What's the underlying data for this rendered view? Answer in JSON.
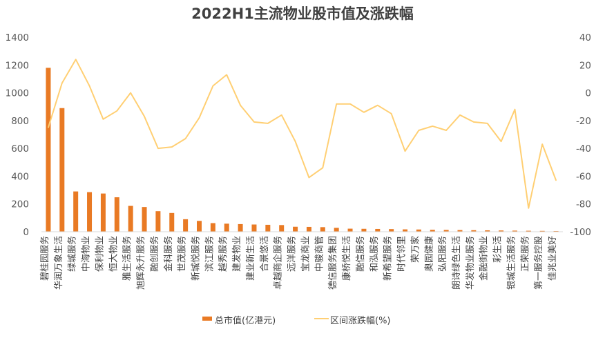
{
  "chart_data": {
    "type": "bar",
    "title": "2022H1主流物业股市值及涨跌幅",
    "categories": [
      "碧桂园服务",
      "华润万象生活",
      "绿城服务",
      "中海物业",
      "保利物业",
      "恒大物业",
      "雅生活服务",
      "旭辉永升服务",
      "融创服务",
      "金科服务",
      "世茂服务",
      "新城悦服务",
      "滨江服务",
      "越秀服务",
      "建发物业",
      "建业新生活",
      "合景悠活",
      "卓越商企服务",
      "远洋服务",
      "宝龙商业",
      "中骏商管",
      "德信服务集团",
      "康桥悦生活",
      "融信服务",
      "和泓服务",
      "新希望服务",
      "时代邻里",
      "荣万家",
      "奥园健康",
      "弘阳服务",
      "朗诗绿色生活",
      "华发物业服务",
      "金融街物业",
      "彩生活",
      "银城生活服务",
      "正荣服务",
      "第一服务控股",
      "佳兆业美好"
    ],
    "series": [
      {
        "name": "总市值(亿港元)",
        "type": "bar",
        "axis": "left",
        "color": "#E97A24",
        "values": [
          1180,
          890,
          290,
          285,
          275,
          248,
          186,
          178,
          148,
          135,
          90,
          78,
          62,
          58,
          55,
          52,
          50,
          48,
          36,
          35,
          33,
          28,
          22,
          21,
          20,
          19,
          17,
          16,
          14,
          13,
          12,
          11,
          10,
          9,
          8,
          7,
          6,
          5
        ]
      },
      {
        "name": "区间涨跌幅(%)",
        "type": "line",
        "axis": "right",
        "color": "#FFCF73",
        "values": [
          -25,
          7,
          24,
          5,
          -19,
          -13,
          0,
          -17,
          -40,
          -39,
          -33,
          -18,
          5,
          13,
          -9,
          -21,
          -22,
          -16,
          -35,
          -61,
          -54,
          -8,
          -8,
          -14,
          -9,
          -15,
          -42,
          -27,
          -24,
          -27,
          -16,
          -21,
          -22,
          -35,
          -12,
          -83,
          -37,
          -63
        ]
      }
    ],
    "left_axis": {
      "ylim": [
        0,
        1400
      ],
      "ticks": [
        "0",
        "200",
        "400",
        "600",
        "800",
        "1000",
        "1200",
        "1400"
      ]
    },
    "right_axis": {
      "ylim": [
        -100,
        40
      ],
      "ticks": [
        "-100",
        "-80",
        "-60",
        "-40",
        "-20",
        "0",
        "20",
        "40"
      ]
    },
    "grid": false,
    "legend_position": "bottom"
  }
}
